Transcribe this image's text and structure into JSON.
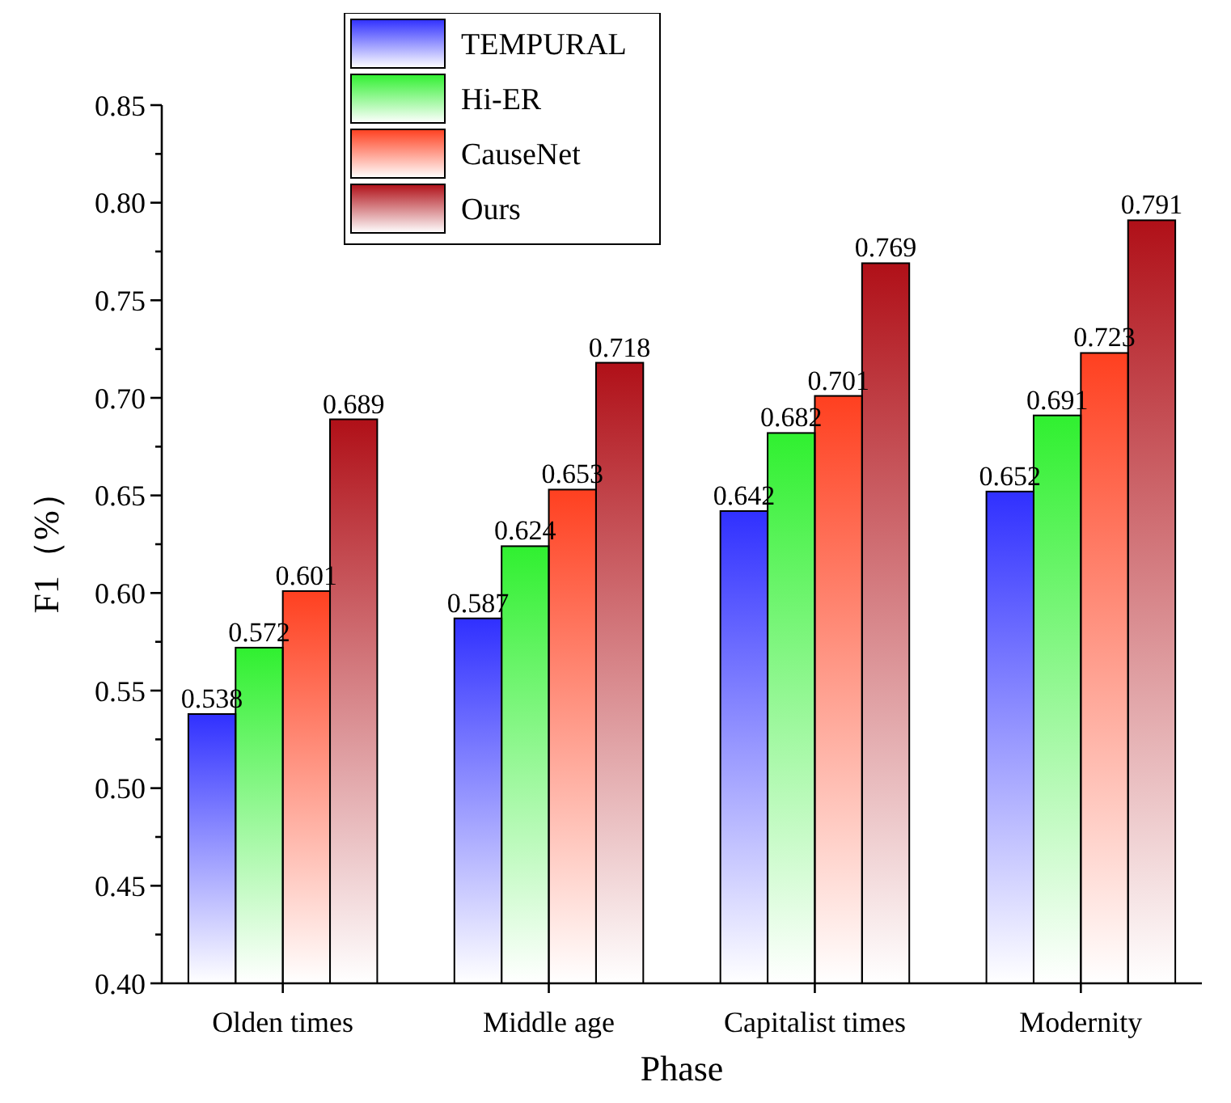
{
  "chart_data": {
    "type": "bar",
    "xlabel": "Phase",
    "ylabel": "F1（%）",
    "categories": [
      "Olden times",
      "Middle age",
      "Capitalist times",
      "Modernity"
    ],
    "series": [
      {
        "name": "TEMPURAL",
        "color": "#3030ff",
        "values": [
          0.538,
          0.587,
          0.642,
          0.652
        ]
      },
      {
        "name": "Hi-ER",
        "color": "#30f030",
        "values": [
          0.572,
          0.624,
          0.682,
          0.691
        ]
      },
      {
        "name": "CauseNet",
        "color": "#ff4020",
        "values": [
          0.601,
          0.653,
          0.701,
          0.723
        ]
      },
      {
        "name": "Ours",
        "color": "#b01018",
        "values": [
          0.689,
          0.718,
          0.769,
          0.791
        ]
      }
    ],
    "ylim": [
      0.4,
      0.85
    ],
    "yticks": [
      {
        "value": 0.4,
        "label": "0.40"
      },
      {
        "value": 0.425,
        "label": null
      },
      {
        "value": 0.45,
        "label": "0.45"
      },
      {
        "value": 0.475,
        "label": null
      },
      {
        "value": 0.5,
        "label": "0.50"
      },
      {
        "value": 0.525,
        "label": null
      },
      {
        "value": 0.55,
        "label": "0.55"
      },
      {
        "value": 0.575,
        "label": null
      },
      {
        "value": 0.6,
        "label": "0.60"
      },
      {
        "value": 0.625,
        "label": null
      },
      {
        "value": 0.65,
        "label": "0.65"
      },
      {
        "value": 0.675,
        "label": null
      },
      {
        "value": 0.7,
        "label": "0.70"
      },
      {
        "value": 0.725,
        "label": null
      },
      {
        "value": 0.75,
        "label": "0.75"
      },
      {
        "value": 0.775,
        "label": null
      },
      {
        "value": 0.8,
        "label": "0.80"
      },
      {
        "value": 0.825,
        "label": null
      },
      {
        "value": 0.85,
        "label": "0.85"
      }
    ],
    "data_labels": true,
    "legend": "top",
    "grid": false
  }
}
